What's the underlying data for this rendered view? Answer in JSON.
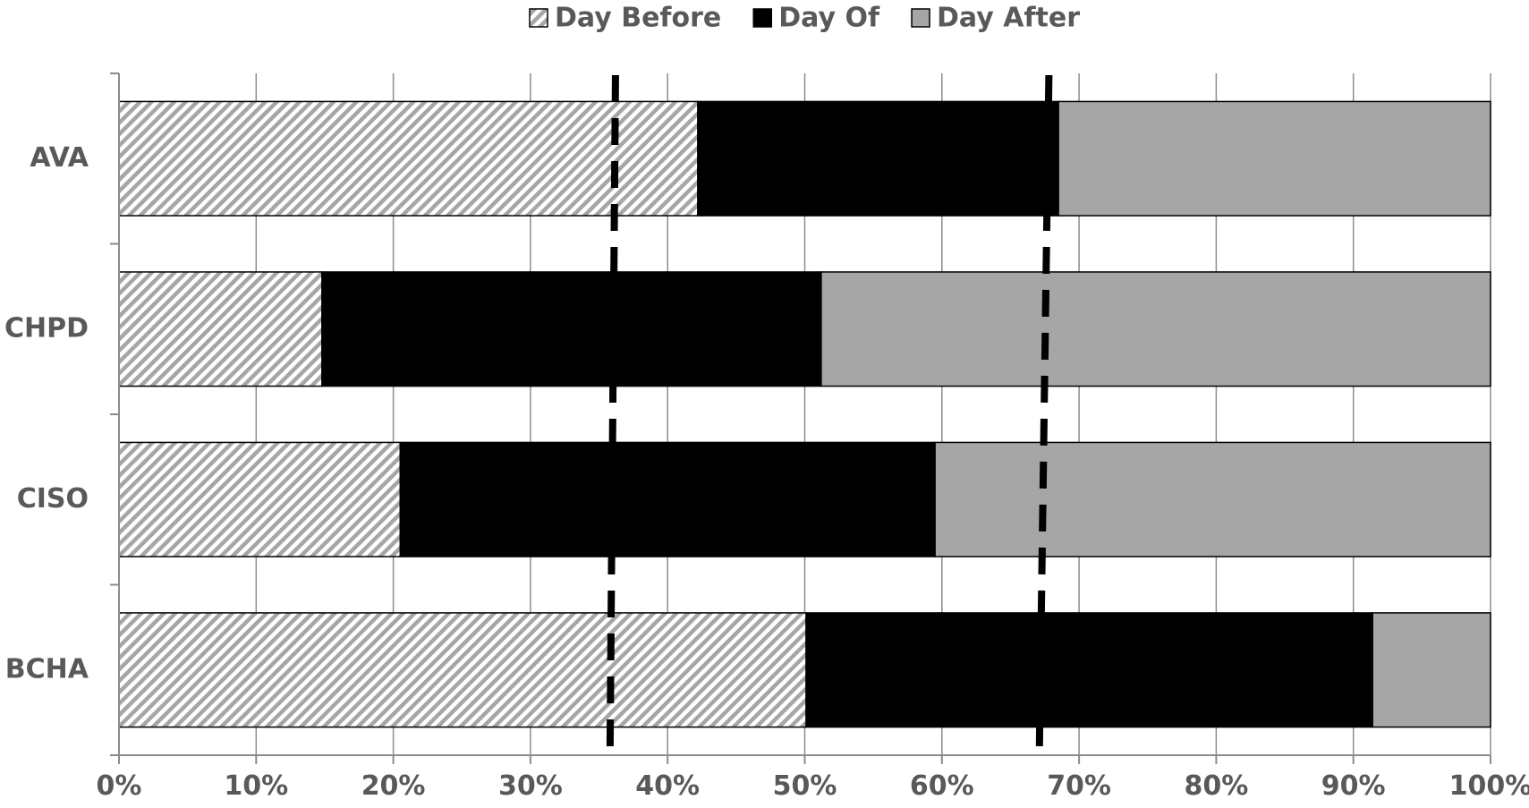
{
  "chart_data": {
    "type": "bar",
    "orientation": "horizontal",
    "stacked": true,
    "normalized": true,
    "categories": [
      "AVA",
      "CHPD",
      "CISO",
      "BCHA"
    ],
    "series": [
      {
        "name": "Day Before",
        "values": [
          42.2,
          14.8,
          20.5,
          50.1
        ],
        "color": "#a6a6a6",
        "pattern": "diagonal-hatch"
      },
      {
        "name": "Day Of",
        "values": [
          26.3,
          36.4,
          39.0,
          41.3
        ],
        "color": "#000000",
        "pattern": "solid"
      },
      {
        "name": "Day After",
        "values": [
          31.5,
          48.8,
          40.5,
          8.6
        ],
        "color": "#a6a6a6",
        "pattern": "solid"
      }
    ],
    "xticks": [
      "0%",
      "10%",
      "20%",
      "30%",
      "40%",
      "50%",
      "60%",
      "70%",
      "80%",
      "90%",
      "100%"
    ],
    "xlim": [
      0,
      100
    ],
    "grid": "vertical",
    "legend": "top-center",
    "reference_lines": [
      {
        "style": "dashed",
        "color": "#000000",
        "from": 36.2,
        "to": 35.8
      },
      {
        "style": "dashed",
        "color": "#000000",
        "from": 67.8,
        "to": 67.1
      }
    ]
  }
}
